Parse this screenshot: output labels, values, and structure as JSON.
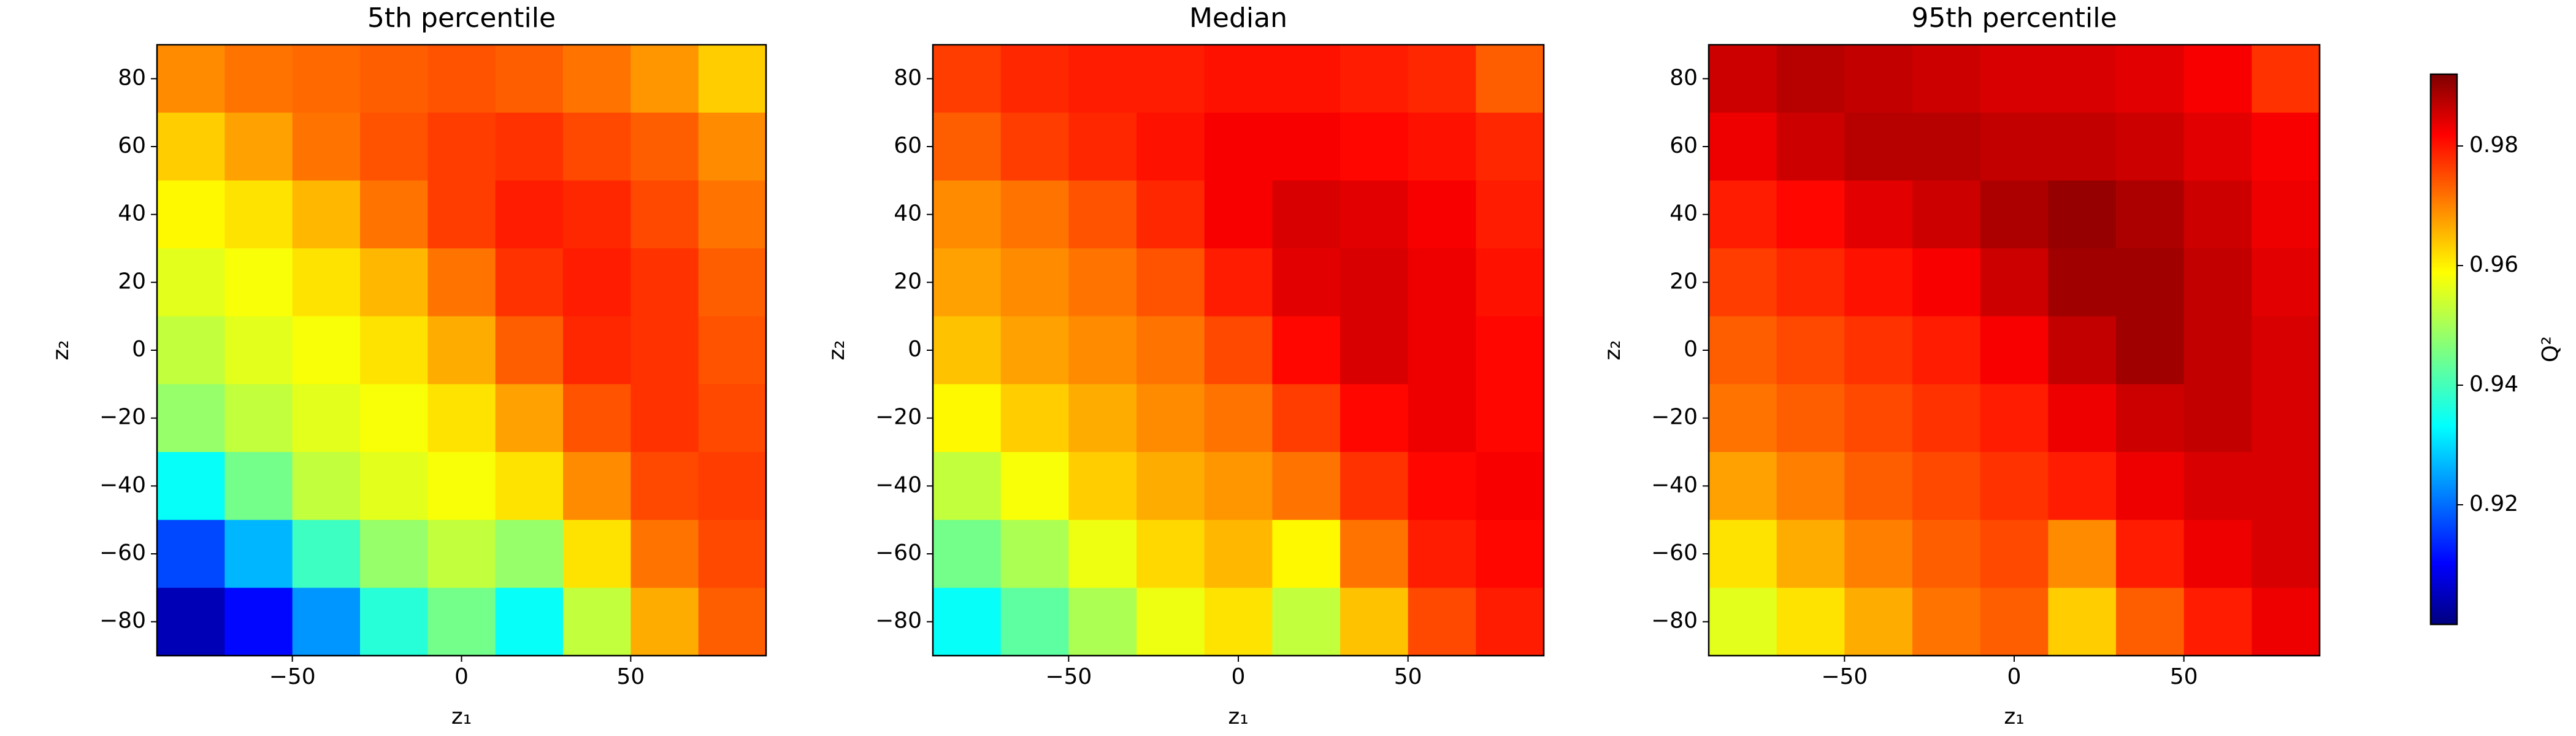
{
  "chart_data": [
    {
      "type": "heatmap",
      "title": "5th percentile",
      "xlabel": "z₁",
      "ylabel": "z₂",
      "x": [
        -80,
        -60,
        -40,
        -20,
        0,
        20,
        40,
        60,
        80
      ],
      "y": [
        80,
        60,
        40,
        20,
        0,
        -20,
        -40,
        -60,
        -80
      ],
      "values": [
        [
          0.968,
          0.97,
          0.971,
          0.972,
          0.973,
          0.972,
          0.97,
          0.967,
          0.962
        ],
        [
          0.962,
          0.966,
          0.97,
          0.973,
          0.975,
          0.976,
          0.974,
          0.972,
          0.968
        ],
        [
          0.958,
          0.96,
          0.964,
          0.97,
          0.975,
          0.978,
          0.977,
          0.974,
          0.97
        ],
        [
          0.955,
          0.957,
          0.96,
          0.964,
          0.97,
          0.976,
          0.978,
          0.976,
          0.972
        ],
        [
          0.952,
          0.955,
          0.957,
          0.96,
          0.965,
          0.972,
          0.977,
          0.976,
          0.973
        ],
        [
          0.948,
          0.952,
          0.955,
          0.957,
          0.96,
          0.966,
          0.973,
          0.976,
          0.974
        ],
        [
          0.935,
          0.945,
          0.952,
          0.955,
          0.957,
          0.96,
          0.968,
          0.974,
          0.975
        ],
        [
          0.918,
          0.928,
          0.94,
          0.948,
          0.952,
          0.948,
          0.96,
          0.97,
          0.974
        ],
        [
          0.905,
          0.912,
          0.925,
          0.938,
          0.945,
          0.935,
          0.952,
          0.965,
          0.972
        ]
      ],
      "xlim": [
        -90,
        90
      ],
      "ylim": [
        -90,
        90
      ],
      "xticks": [
        {
          "value": -50,
          "label": "−50"
        },
        0,
        50
      ],
      "yticks": [
        80,
        60,
        40,
        20,
        0,
        {
          "value": -20,
          "label": "−20"
        },
        {
          "value": -40,
          "label": "−40"
        },
        {
          "value": -60,
          "label": "−60"
        },
        {
          "value": -80,
          "label": "−80"
        }
      ]
    },
    {
      "type": "heatmap",
      "title": "Median",
      "xlabel": "z₁",
      "ylabel": "z₂",
      "x": [
        -80,
        -60,
        -40,
        -20,
        0,
        20,
        40,
        60,
        80
      ],
      "y": [
        80,
        60,
        40,
        20,
        0,
        -20,
        -40,
        -60,
        -80
      ],
      "values": [
        [
          0.975,
          0.977,
          0.978,
          0.978,
          0.979,
          0.979,
          0.978,
          0.977,
          0.972
        ],
        [
          0.972,
          0.975,
          0.977,
          0.979,
          0.981,
          0.981,
          0.98,
          0.979,
          0.977
        ],
        [
          0.968,
          0.97,
          0.973,
          0.977,
          0.981,
          0.984,
          0.983,
          0.981,
          0.978
        ],
        [
          0.966,
          0.968,
          0.97,
          0.973,
          0.978,
          0.983,
          0.984,
          0.982,
          0.979
        ],
        [
          0.963,
          0.966,
          0.968,
          0.97,
          0.974,
          0.98,
          0.984,
          0.982,
          0.98
        ],
        [
          0.958,
          0.962,
          0.965,
          0.968,
          0.97,
          0.975,
          0.98,
          0.982,
          0.98
        ],
        [
          0.952,
          0.957,
          0.962,
          0.965,
          0.967,
          0.97,
          0.976,
          0.98,
          0.981
        ],
        [
          0.945,
          0.95,
          0.956,
          0.961,
          0.964,
          0.958,
          0.97,
          0.978,
          0.98
        ],
        [
          0.935,
          0.943,
          0.95,
          0.956,
          0.96,
          0.952,
          0.963,
          0.974,
          0.978
        ]
      ],
      "xlim": [
        -90,
        90
      ],
      "ylim": [
        -90,
        90
      ],
      "xticks": [
        {
          "value": -50,
          "label": "−50"
        },
        0,
        50
      ],
      "yticks": [
        80,
        60,
        40,
        20,
        0,
        {
          "value": -20,
          "label": "−20"
        },
        {
          "value": -40,
          "label": "−40"
        },
        {
          "value": -60,
          "label": "−60"
        },
        {
          "value": -80,
          "label": "−80"
        }
      ]
    },
    {
      "type": "heatmap",
      "title": "95th percentile",
      "xlabel": "z₁",
      "ylabel": "z₂",
      "x": [
        -80,
        -60,
        -40,
        -20,
        0,
        20,
        40,
        60,
        80
      ],
      "y": [
        80,
        60,
        40,
        20,
        0,
        -20,
        -40,
        -60,
        -80
      ],
      "values": [
        [
          0.985,
          0.987,
          0.986,
          0.985,
          0.984,
          0.984,
          0.983,
          0.981,
          0.976
        ],
        [
          0.982,
          0.985,
          0.987,
          0.987,
          0.986,
          0.986,
          0.985,
          0.983,
          0.981
        ],
        [
          0.978,
          0.98,
          0.983,
          0.985,
          0.988,
          0.99,
          0.988,
          0.985,
          0.982
        ],
        [
          0.975,
          0.977,
          0.979,
          0.981,
          0.985,
          0.989,
          0.989,
          0.986,
          0.983
        ],
        [
          0.972,
          0.974,
          0.976,
          0.978,
          0.981,
          0.986,
          0.989,
          0.986,
          0.984
        ],
        [
          0.97,
          0.972,
          0.974,
          0.976,
          0.978,
          0.982,
          0.985,
          0.986,
          0.984
        ],
        [
          0.966,
          0.969,
          0.972,
          0.974,
          0.976,
          0.978,
          0.982,
          0.984,
          0.984
        ],
        [
          0.96,
          0.965,
          0.969,
          0.972,
          0.974,
          0.968,
          0.978,
          0.982,
          0.984
        ],
        [
          0.955,
          0.96,
          0.965,
          0.97,
          0.972,
          0.962,
          0.972,
          0.978,
          0.982
        ]
      ],
      "xlim": [
        -90,
        90
      ],
      "ylim": [
        -90,
        90
      ],
      "xticks": [
        {
          "value": -50,
          "label": "−50"
        },
        0,
        50
      ],
      "yticks": [
        80,
        60,
        40,
        20,
        0,
        {
          "value": -20,
          "label": "−20"
        },
        {
          "value": -40,
          "label": "−40"
        },
        {
          "value": -60,
          "label": "−60"
        },
        {
          "value": -80,
          "label": "−80"
        }
      ]
    },
    {
      "type": "colorbar",
      "label": "Q²",
      "colormap": "jet",
      "zlim": [
        0.9,
        0.992
      ],
      "zticks": [
        0.92,
        0.94,
        0.96,
        0.98
      ]
    }
  ]
}
